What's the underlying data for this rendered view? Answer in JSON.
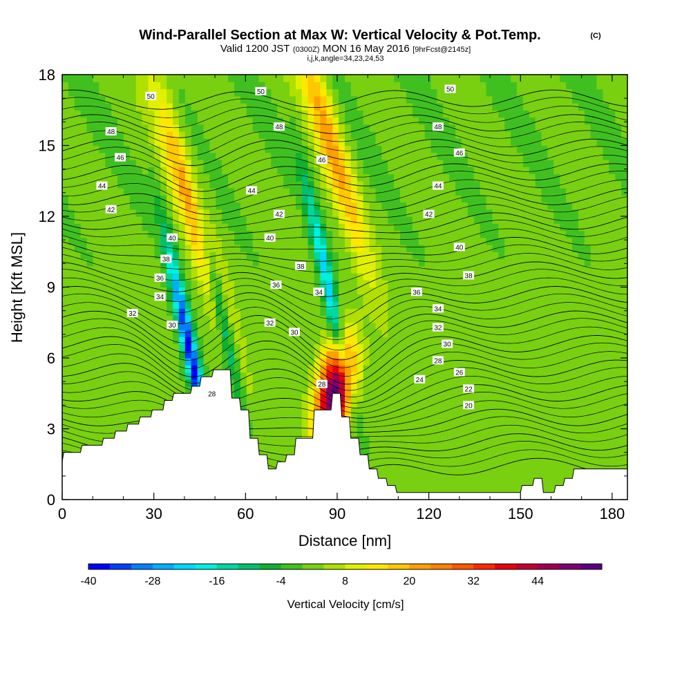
{
  "title": {
    "main": "Wind-Parallel Section at Max W: Vertical Velocity & Pot.Temp.",
    "main_unit": "(C)",
    "valid_prefix": "Valid 1200 JST",
    "valid_utc": "(0300Z)",
    "valid_date": "MON 16 May 2016",
    "forecast": "[9hrFcst@2145z]",
    "params": "i,j,k,angle=34,23,24,53"
  },
  "chart_data": {
    "type": "heatmap",
    "xlabel": "Distance [nm]",
    "ylabel": "Height [Kft MSL]",
    "xlim": [
      0,
      185
    ],
    "ylim": [
      0,
      18
    ],
    "x_ticks": [
      0,
      30,
      60,
      90,
      120,
      150,
      180
    ],
    "y_ticks": [
      0,
      3,
      6,
      9,
      12,
      15,
      18
    ],
    "colorbar": {
      "title": "Vertical Velocity [cm/s]",
      "levels": [
        -40,
        -36,
        -32,
        -28,
        -24,
        -20,
        -16,
        -12,
        -8,
        -4,
        0,
        4,
        8,
        12,
        16,
        20,
        24,
        28,
        32,
        36,
        40,
        44,
        48,
        52
      ],
      "colors": [
        "#0000ff",
        "#0040ff",
        "#0080ff",
        "#00b0ff",
        "#00d8ff",
        "#00f0e0",
        "#00d8a0",
        "#00c070",
        "#10b030",
        "#40c020",
        "#78d010",
        "#b0e000",
        "#e0f000",
        "#ffe800",
        "#ffc800",
        "#ffa000",
        "#ff8000",
        "#ff5800",
        "#ff2800",
        "#e80010",
        "#c00030",
        "#a00050",
        "#800070",
        "#5a0080"
      ],
      "tick_labels": [
        "-40",
        "-28",
        "-16",
        "-4",
        "8",
        "20",
        "32",
        "44"
      ]
    },
    "w_features": [
      {
        "type": "updraft",
        "x": 89,
        "y": 4.5,
        "w": 52
      },
      {
        "type": "updraft",
        "x": 42,
        "y": 12.5,
        "w": 20
      },
      {
        "type": "updraft",
        "x": 87,
        "y": 15.5,
        "w": 20
      },
      {
        "type": "downdraft",
        "x": 42,
        "y": 6.2,
        "w": -40
      },
      {
        "type": "downdraft",
        "x": 52,
        "y": 8,
        "w": -20
      },
      {
        "type": "downdraft",
        "x": 87,
        "y": 9,
        "w": -24
      }
    ],
    "isentropes_c": [
      20,
      22,
      24,
      26,
      28,
      30,
      32,
      34,
      36,
      38,
      40,
      42,
      44,
      46,
      48,
      50
    ],
    "contour_labels": [
      {
        "text": "50",
        "x": 29,
        "y": 17.1
      },
      {
        "text": "50",
        "x": 65,
        "y": 17.3
      },
      {
        "text": "50",
        "x": 127,
        "y": 17.4
      },
      {
        "text": "48",
        "x": 16,
        "y": 15.6
      },
      {
        "text": "48",
        "x": 71,
        "y": 15.8
      },
      {
        "text": "48",
        "x": 123,
        "y": 15.8
      },
      {
        "text": "46",
        "x": 19,
        "y": 14.5
      },
      {
        "text": "46",
        "x": 85,
        "y": 14.4
      },
      {
        "text": "46",
        "x": 130,
        "y": 14.7
      },
      {
        "text": "44",
        "x": 13,
        "y": 13.3
      },
      {
        "text": "44",
        "x": 62,
        "y": 13.1
      },
      {
        "text": "44",
        "x": 123,
        "y": 13.3
      },
      {
        "text": "42",
        "x": 16,
        "y": 12.3
      },
      {
        "text": "42",
        "x": 71,
        "y": 12.1
      },
      {
        "text": "42",
        "x": 120,
        "y": 12.1
      },
      {
        "text": "40",
        "x": 36,
        "y": 11.1
      },
      {
        "text": "40",
        "x": 68,
        "y": 11.1
      },
      {
        "text": "40",
        "x": 130,
        "y": 10.7
      },
      {
        "text": "38",
        "x": 34,
        "y": 10.2
      },
      {
        "text": "38",
        "x": 78,
        "y": 9.9
      },
      {
        "text": "38",
        "x": 133,
        "y": 9.5
      },
      {
        "text": "36",
        "x": 32,
        "y": 9.4
      },
      {
        "text": "36",
        "x": 70,
        "y": 9.1
      },
      {
        "text": "36",
        "x": 116,
        "y": 8.8
      },
      {
        "text": "34",
        "x": 32,
        "y": 8.6
      },
      {
        "text": "34",
        "x": 84,
        "y": 8.8
      },
      {
        "text": "34",
        "x": 123,
        "y": 8.1
      },
      {
        "text": "32",
        "x": 23,
        "y": 7.9
      },
      {
        "text": "32",
        "x": 68,
        "y": 7.5
      },
      {
        "text": "32",
        "x": 123,
        "y": 7.3
      },
      {
        "text": "30",
        "x": 36,
        "y": 7.4
      },
      {
        "text": "30",
        "x": 76,
        "y": 7.1
      },
      {
        "text": "30",
        "x": 126,
        "y": 6.6
      },
      {
        "text": "28",
        "x": 123,
        "y": 5.9
      },
      {
        "text": "28",
        "x": 49,
        "y": 4.5
      },
      {
        "text": "28",
        "x": 85,
        "y": 4.9
      },
      {
        "text": "26",
        "x": 130,
        "y": 5.4
      },
      {
        "text": "24",
        "x": 117,
        "y": 5.1
      },
      {
        "text": "22",
        "x": 133,
        "y": 4.7
      },
      {
        "text": "20",
        "x": 133,
        "y": 4.0
      }
    ],
    "terrain": {
      "x": [
        0,
        0.5,
        6,
        6.5,
        13,
        13.5,
        17,
        17.5,
        21,
        21.5,
        25,
        25.5,
        29,
        29.5,
        33,
        33.5,
        36,
        36.5,
        42,
        42.5,
        45,
        45.5,
        49,
        49.5,
        52,
        52.5,
        55,
        55.5,
        58,
        58.5,
        61,
        61.5,
        64,
        64.5,
        67,
        67.5,
        70,
        70.5,
        73,
        73.5,
        76,
        76.5,
        82,
        82.5,
        88,
        88.5,
        91,
        91.5,
        94,
        94.5,
        97,
        97.5,
        100,
        100.5,
        103,
        103.5,
        106,
        106.5,
        109,
        109.5,
        150,
        150.5,
        154,
        154.5,
        157,
        157.5,
        161,
        161.5,
        164,
        164.5,
        167,
        167.5,
        170,
        170.5,
        176,
        176.5,
        185
      ],
      "h": [
        1.6,
        2.0,
        2.0,
        2.3,
        2.3,
        2.6,
        2.6,
        2.9,
        2.9,
        3.2,
        3.2,
        3.5,
        3.5,
        3.8,
        3.8,
        4.2,
        4.2,
        4.5,
        4.5,
        4.8,
        4.8,
        5.2,
        5.2,
        5.5,
        5.5,
        5.5,
        5.5,
        4.3,
        4.3,
        3.8,
        3.8,
        2.6,
        2.6,
        1.9,
        1.9,
        1.3,
        1.3,
        1.6,
        1.6,
        1.9,
        1.9,
        2.6,
        2.6,
        3.8,
        3.8,
        4.5,
        4.5,
        3.5,
        3.5,
        2.6,
        2.6,
        1.9,
        1.9,
        1.3,
        1.3,
        0.9,
        0.9,
        0.6,
        0.6,
        0.3,
        0.3,
        0.6,
        0.6,
        0.9,
        0.9,
        0.3,
        0.3,
        0.6,
        0.6,
        0.9,
        0.9,
        1.3,
        1.3,
        1.3,
        1.3,
        1.3,
        1.3
      ]
    }
  }
}
